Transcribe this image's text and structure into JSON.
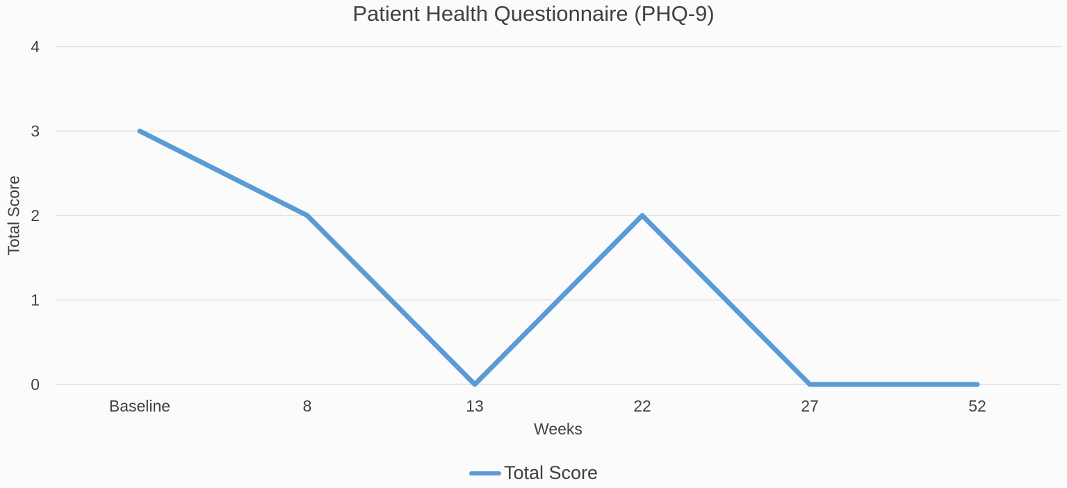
{
  "chart_data": {
    "type": "line",
    "title": "Patient Health Questionnaire (PHQ-9)",
    "xlabel": "Weeks",
    "ylabel": "Total Score",
    "categories": [
      "Baseline",
      "8",
      "13",
      "22",
      "27",
      "52"
    ],
    "series": [
      {
        "name": "Total Score",
        "values": [
          3,
          2,
          0,
          2,
          0,
          0
        ],
        "color": "#5b9bd5"
      }
    ],
    "ylim": [
      0,
      4
    ],
    "yticks": [
      "0",
      "1",
      "2",
      "3",
      "4"
    ],
    "grid": true,
    "legend": "bottom"
  }
}
